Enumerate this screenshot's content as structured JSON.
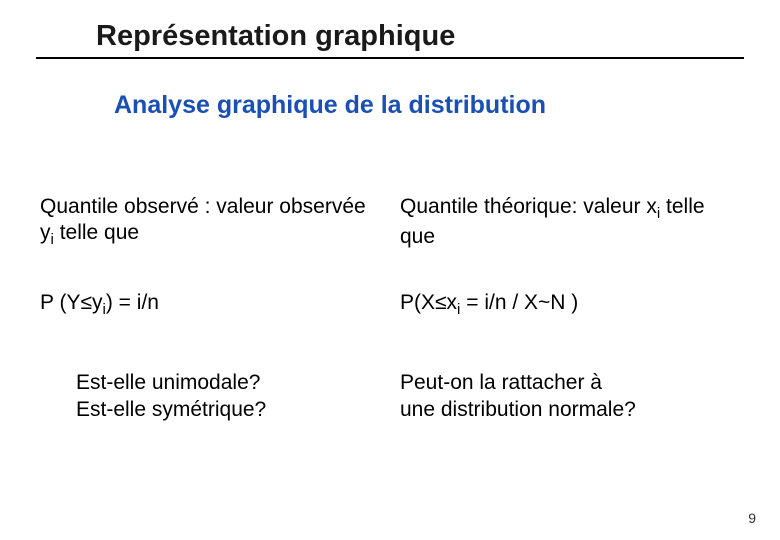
{
  "title": "Représentation graphique",
  "subtitle": "Analyse graphique de la distribution",
  "rows": [
    {
      "left": {
        "before": "Quantile observé : valeur observée y",
        "sub": "i",
        "after": " telle que"
      },
      "right": {
        "before": "Quantile théorique: valeur x",
        "sub": "i",
        "after": " telle que"
      }
    },
    {
      "left": {
        "before": "P (Y≤y",
        "sub": "i",
        "after": ") = i/n"
      },
      "right": {
        "before": "P(X≤x",
        "sub": "i",
        "after": " = i/n / X~N )"
      }
    }
  ],
  "q_left_1": "Est-elle unimodale?",
  "q_left_2": "Est-elle symétrique?",
  "q_right_1": "Peut-on la rattacher à",
  "q_right_2": "une distribution normale?",
  "page_number": "9",
  "colors": {
    "subtitle": "#1a4fb3",
    "text": "#000000",
    "bullet_ring": "#4aa0b8"
  }
}
